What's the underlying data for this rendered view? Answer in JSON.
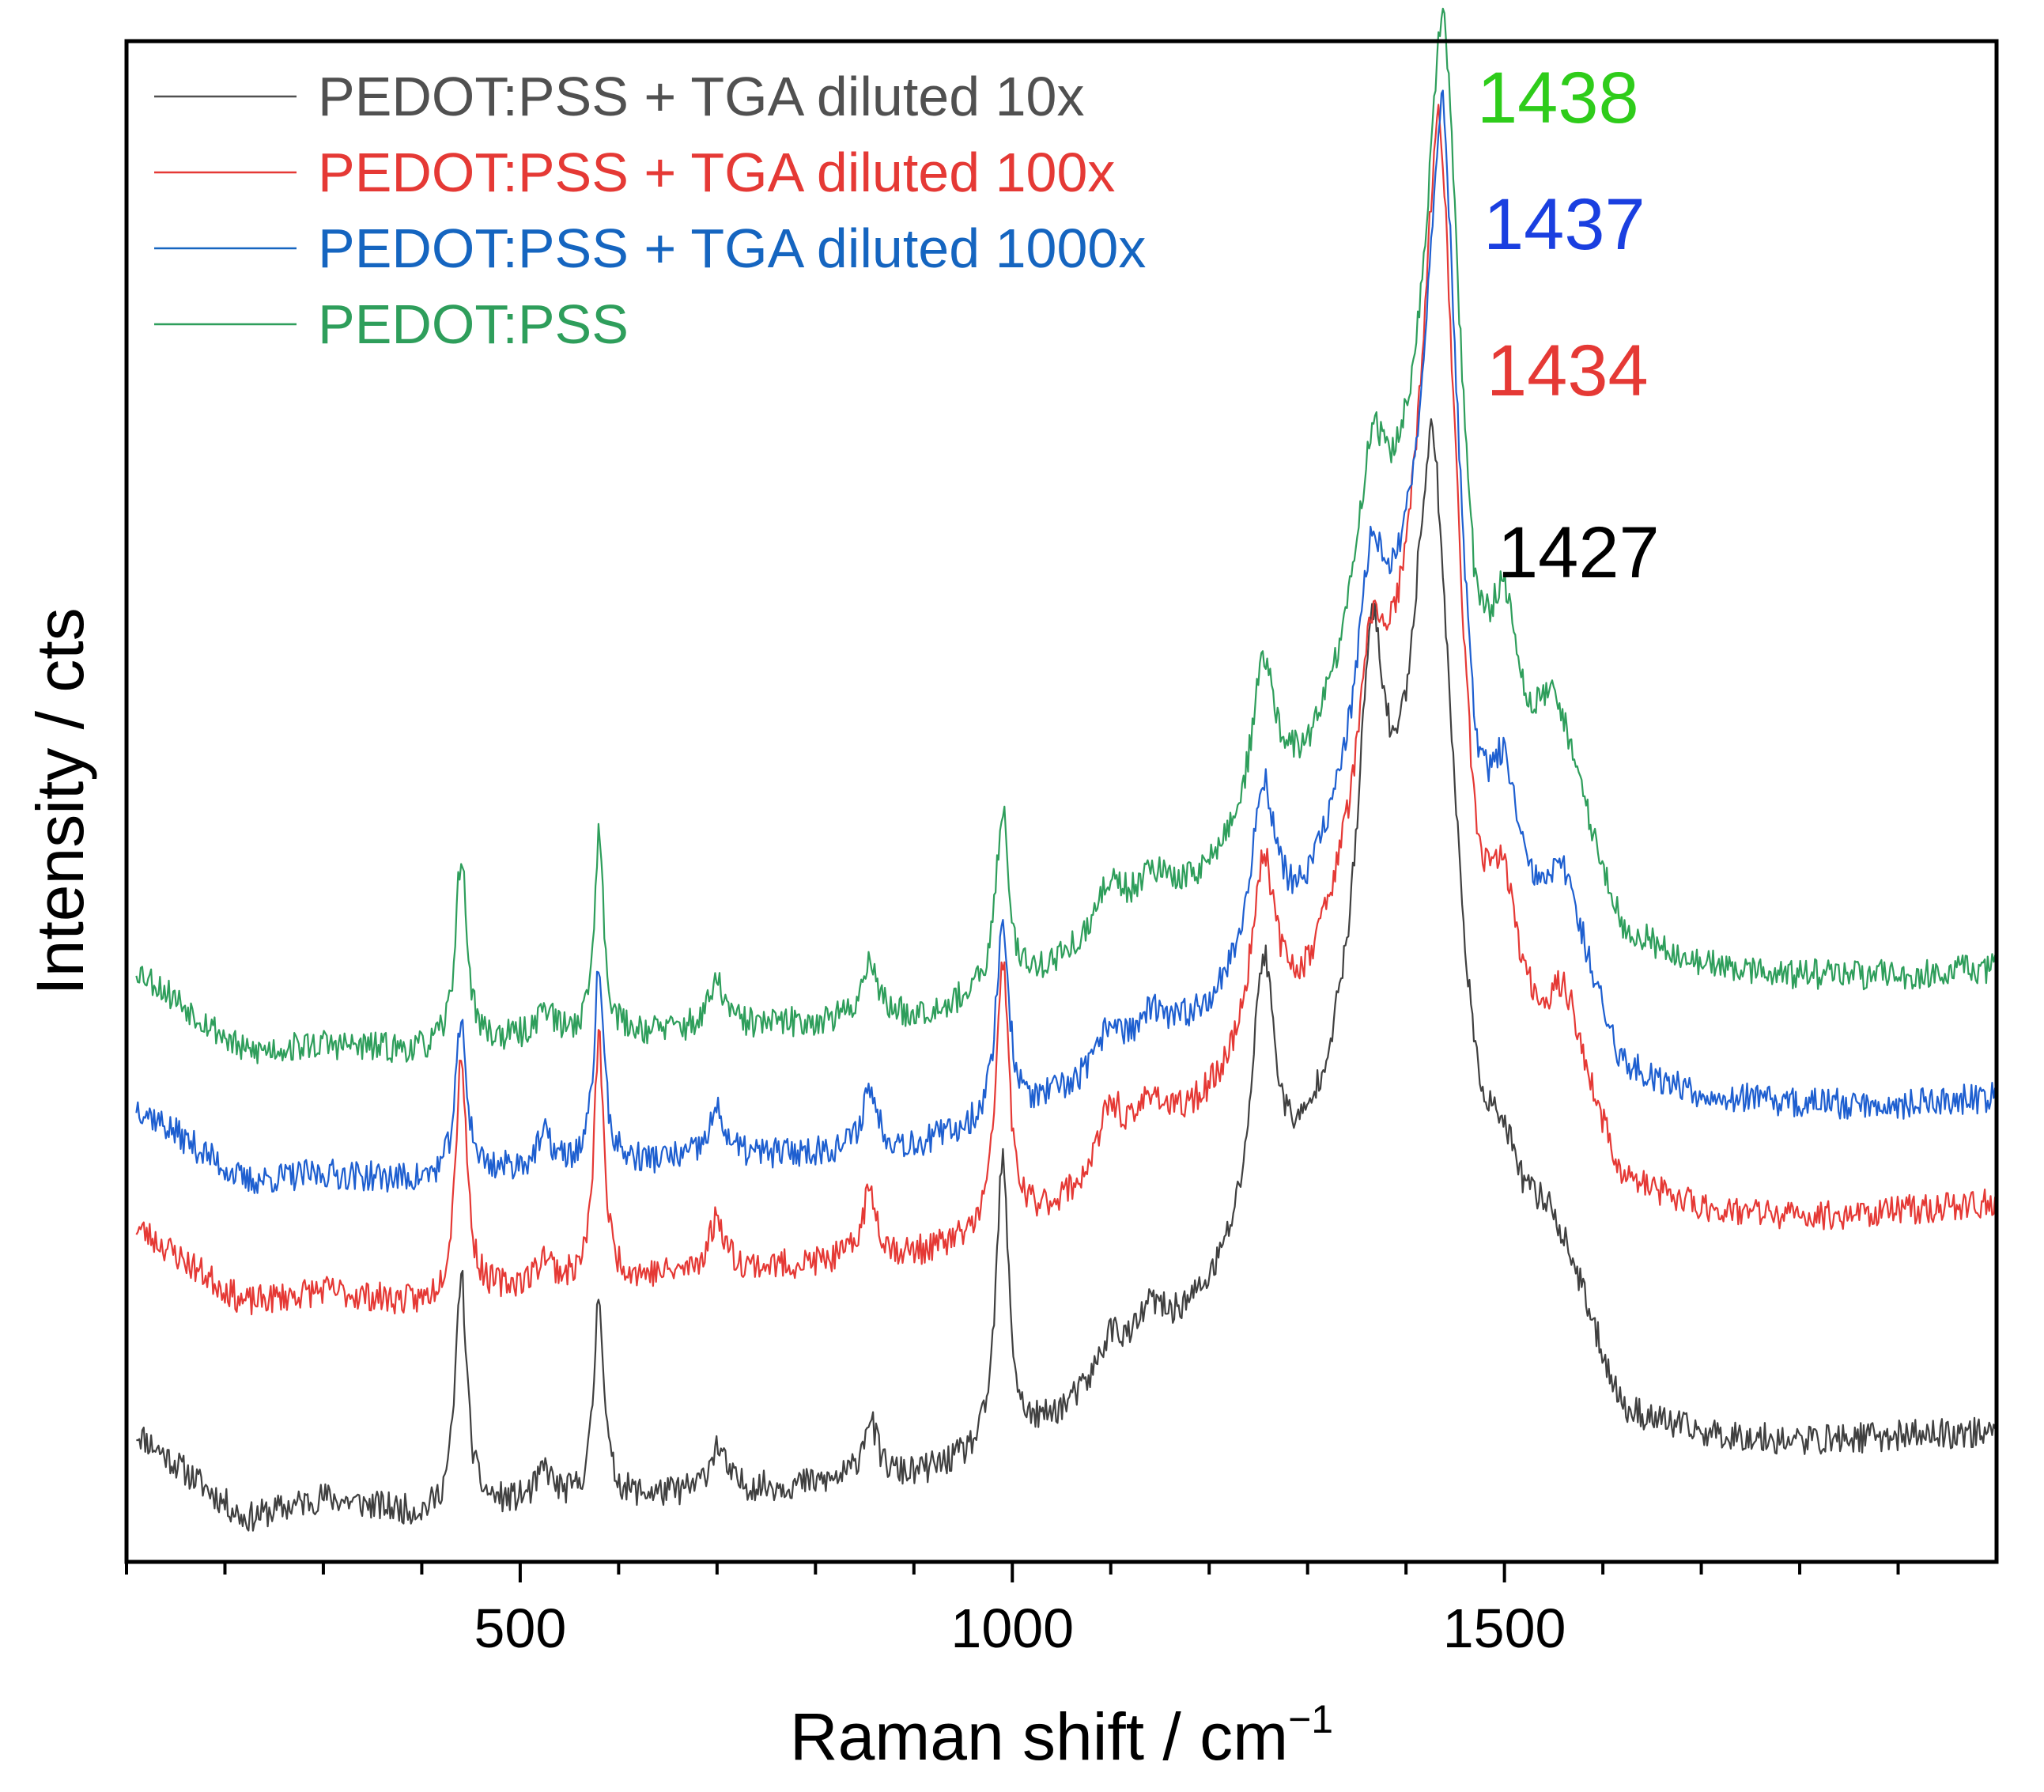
{
  "chart_data": {
    "type": "line",
    "title": "",
    "xlabel": "Raman shift / cm",
    "xlabel_sup": "−1",
    "ylabel": "Intensity / cts",
    "xlim": [
      100,
      2000
    ],
    "ylim": [
      0,
      1
    ],
    "grid": false,
    "y_tick_labels": false,
    "legend_position": "top-left",
    "x_major_ticks": [
      500,
      1000,
      1500
    ],
    "x_tick_labels": [
      "500",
      "1000",
      "1500"
    ],
    "x_minor_step": 100,
    "series": [
      {
        "name": "PEDOT:PSS + TGA diluted 10x",
        "color": "#404040",
        "legend_color": "#505050",
        "baseline": [
          [
            110,
            0.085
          ],
          [
            220,
            0.028
          ],
          [
            300,
            0.042
          ],
          [
            400,
            0.03
          ],
          [
            500,
            0.038
          ],
          [
            700,
            0.045
          ],
          [
            900,
            0.055
          ],
          [
            1000,
            0.072
          ],
          [
            1100,
            0.115
          ],
          [
            1200,
            0.17
          ],
          [
            1300,
            0.26
          ],
          [
            1400,
            0.42
          ],
          [
            1427,
            0.47
          ],
          [
            1470,
            0.26
          ],
          [
            1500,
            0.225
          ],
          [
            1570,
            0.18
          ],
          [
            1620,
            0.095
          ],
          [
            1700,
            0.082
          ],
          [
            1800,
            0.078
          ],
          [
            1900,
            0.082
          ],
          [
            2000,
            0.085
          ]
        ],
        "peaks": [
          {
            "x": 440,
            "h": 0.155,
            "w": 7
          },
          {
            "x": 525,
            "h": 0.02,
            "w": 9
          },
          {
            "x": 580,
            "h": 0.135,
            "w": 6
          },
          {
            "x": 700,
            "h": 0.03,
            "w": 10
          },
          {
            "x": 855,
            "h": 0.04,
            "w": 9
          },
          {
            "x": 990,
            "h": 0.19,
            "w": 8
          },
          {
            "x": 1100,
            "h": 0.03,
            "w": 15
          },
          {
            "x": 1140,
            "h": 0.025,
            "w": 15
          },
          {
            "x": 1255,
            "h": 0.17,
            "w": 14
          },
          {
            "x": 1365,
            "h": 0.22,
            "w": 16
          },
          {
            "x": 1427,
            "h": 0.26,
            "w": 24
          },
          {
            "x": 1500,
            "h": 0.03,
            "w": 15
          },
          {
            "x": 1545,
            "h": 0.025,
            "w": 18
          }
        ],
        "noise": 0.01,
        "seed": 11,
        "peak_annotation": {
          "text": "1427",
          "color": "#000000"
        }
      },
      {
        "name": "PEDOT:PSS + TGA diluted 100x",
        "color": "#e53935",
        "legend_color": "#e53935",
        "baseline": [
          [
            110,
            0.22
          ],
          [
            220,
            0.17
          ],
          [
            300,
            0.178
          ],
          [
            400,
            0.168
          ],
          [
            500,
            0.18
          ],
          [
            700,
            0.19
          ],
          [
            900,
            0.2
          ],
          [
            1000,
            0.215
          ],
          [
            1100,
            0.25
          ],
          [
            1200,
            0.3
          ],
          [
            1300,
            0.37
          ],
          [
            1400,
            0.55
          ],
          [
            1434,
            0.6
          ],
          [
            1470,
            0.38
          ],
          [
            1500,
            0.34
          ],
          [
            1570,
            0.32
          ],
          [
            1620,
            0.245
          ],
          [
            1700,
            0.23
          ],
          [
            1800,
            0.225
          ],
          [
            1900,
            0.23
          ],
          [
            2000,
            0.235
          ]
        ],
        "peaks": [
          {
            "x": 440,
            "h": 0.16,
            "w": 7
          },
          {
            "x": 525,
            "h": 0.018,
            "w": 9
          },
          {
            "x": 580,
            "h": 0.16,
            "w": 6
          },
          {
            "x": 700,
            "h": 0.035,
            "w": 10
          },
          {
            "x": 855,
            "h": 0.045,
            "w": 9
          },
          {
            "x": 990,
            "h": 0.18,
            "w": 8
          },
          {
            "x": 1100,
            "h": 0.045,
            "w": 15
          },
          {
            "x": 1140,
            "h": 0.03,
            "w": 15
          },
          {
            "x": 1255,
            "h": 0.12,
            "w": 14
          },
          {
            "x": 1365,
            "h": 0.1,
            "w": 16
          },
          {
            "x": 1434,
            "h": 0.34,
            "w": 22
          },
          {
            "x": 1500,
            "h": 0.08,
            "w": 15
          },
          {
            "x": 1560,
            "h": 0.04,
            "w": 18
          }
        ],
        "noise": 0.01,
        "seed": 23,
        "peak_annotation": {
          "text": "1434",
          "color": "#e53935"
        }
      },
      {
        "name": "PEDOT:PSS + TGA diluted 1000x",
        "color": "#1e5fd0",
        "legend_color": "#1565c0",
        "baseline": [
          [
            110,
            0.3
          ],
          [
            220,
            0.25
          ],
          [
            300,
            0.255
          ],
          [
            400,
            0.25
          ],
          [
            500,
            0.258
          ],
          [
            700,
            0.265
          ],
          [
            900,
            0.272
          ],
          [
            1000,
            0.29
          ],
          [
            1100,
            0.32
          ],
          [
            1200,
            0.36
          ],
          [
            1300,
            0.43
          ],
          [
            1400,
            0.6
          ],
          [
            1437,
            0.66
          ],
          [
            1470,
            0.45
          ],
          [
            1500,
            0.42
          ],
          [
            1570,
            0.4
          ],
          [
            1620,
            0.32
          ],
          [
            1700,
            0.305
          ],
          [
            1800,
            0.3
          ],
          [
            1900,
            0.3
          ],
          [
            2000,
            0.305
          ]
        ],
        "peaks": [
          {
            "x": 440,
            "h": 0.1,
            "w": 7
          },
          {
            "x": 525,
            "h": 0.02,
            "w": 9
          },
          {
            "x": 580,
            "h": 0.13,
            "w": 6
          },
          {
            "x": 700,
            "h": 0.03,
            "w": 10
          },
          {
            "x": 855,
            "h": 0.04,
            "w": 9
          },
          {
            "x": 990,
            "h": 0.13,
            "w": 8
          },
          {
            "x": 1100,
            "h": 0.03,
            "w": 15
          },
          {
            "x": 1140,
            "h": 0.02,
            "w": 15
          },
          {
            "x": 1255,
            "h": 0.11,
            "w": 14
          },
          {
            "x": 1365,
            "h": 0.11,
            "w": 16
          },
          {
            "x": 1437,
            "h": 0.29,
            "w": 20
          },
          {
            "x": 1500,
            "h": 0.08,
            "w": 15
          },
          {
            "x": 1560,
            "h": 0.04,
            "w": 18
          }
        ],
        "noise": 0.01,
        "seed": 37,
        "peak_annotation": {
          "text": "1437",
          "color": "#1a3fe0"
        }
      },
      {
        "name": "PEDOT:PSS",
        "color": "#2e9e5b",
        "legend_color": "#2e9e5b",
        "baseline": [
          [
            110,
            0.39
          ],
          [
            220,
            0.335
          ],
          [
            300,
            0.34
          ],
          [
            400,
            0.335
          ],
          [
            500,
            0.343
          ],
          [
            700,
            0.35
          ],
          [
            900,
            0.358
          ],
          [
            1000,
            0.375
          ],
          [
            1100,
            0.41
          ],
          [
            1200,
            0.45
          ],
          [
            1300,
            0.52
          ],
          [
            1400,
            0.68
          ],
          [
            1438,
            0.74
          ],
          [
            1470,
            0.55
          ],
          [
            1500,
            0.52
          ],
          [
            1570,
            0.5
          ],
          [
            1620,
            0.41
          ],
          [
            1700,
            0.39
          ],
          [
            1800,
            0.385
          ],
          [
            1900,
            0.385
          ],
          [
            2000,
            0.39
          ]
        ],
        "peaks": [
          {
            "x": 440,
            "h": 0.125,
            "w": 7
          },
          {
            "x": 525,
            "h": 0.02,
            "w": 9
          },
          {
            "x": 580,
            "h": 0.13,
            "w": 6
          },
          {
            "x": 700,
            "h": 0.03,
            "w": 10
          },
          {
            "x": 855,
            "h": 0.04,
            "w": 9
          },
          {
            "x": 990,
            "h": 0.12,
            "w": 8
          },
          {
            "x": 1100,
            "h": 0.035,
            "w": 15
          },
          {
            "x": 1140,
            "h": 0.025,
            "w": 15
          },
          {
            "x": 1255,
            "h": 0.1,
            "w": 14
          },
          {
            "x": 1365,
            "h": 0.1,
            "w": 16
          },
          {
            "x": 1438,
            "h": 0.27,
            "w": 20
          },
          {
            "x": 1500,
            "h": 0.09,
            "w": 15
          },
          {
            "x": 1550,
            "h": 0.05,
            "w": 18
          }
        ],
        "noise": 0.01,
        "seed": 53,
        "peak_annotation": {
          "text": "1438",
          "color": "#2ecc1a"
        }
      }
    ]
  }
}
